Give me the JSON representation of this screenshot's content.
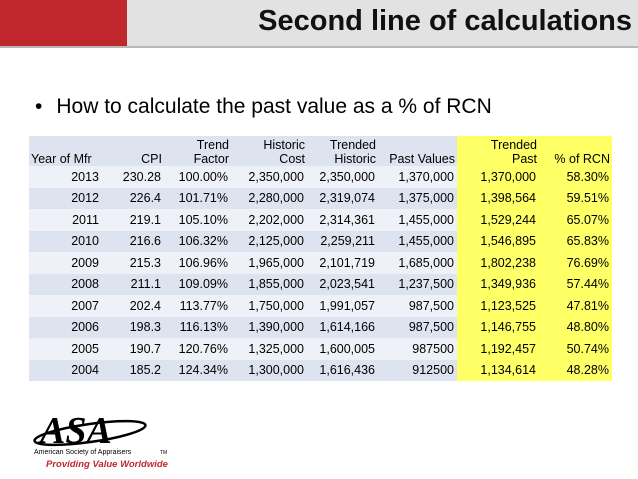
{
  "slide": {
    "title": "Second line of calculations",
    "bullet": "How to calculate the past value as a % of RCN"
  },
  "table": {
    "headers": [
      {
        "line1": "",
        "line2": "Year of Mfr"
      },
      {
        "line1": "",
        "line2": "CPI"
      },
      {
        "line1": "Trend",
        "line2": "Factor"
      },
      {
        "line1": "Historic",
        "line2": "Cost"
      },
      {
        "line1": "Trended",
        "line2": "Historic"
      },
      {
        "line1": "",
        "line2": "Past  Values"
      },
      {
        "line1": "Trended",
        "line2": "Past"
      },
      {
        "line1": "",
        "line2": "% of RCN"
      }
    ],
    "rows": [
      [
        "2013",
        "230.28",
        "100.00%",
        "2,350,000",
        "2,350,000",
        "1,370,000",
        "1,370,000",
        "58.30%"
      ],
      [
        "2012",
        "226.4",
        "101.71%",
        "2,280,000",
        "2,319,074",
        "1,375,000",
        "1,398,564",
        "59.51%"
      ],
      [
        "2011",
        "219.1",
        "105.10%",
        "2,202,000",
        "2,314,361",
        "1,455,000",
        "1,529,244",
        "65.07%"
      ],
      [
        "2010",
        "216.6",
        "106.32%",
        "2,125,000",
        "2,259,211",
        "1,455,000",
        "1,546,895",
        "65.83%"
      ],
      [
        "2009",
        "215.3",
        "106.96%",
        "1,965,000",
        "2,101,719",
        "1,685,000",
        "1,802,238",
        "76.69%"
      ],
      [
        "2008",
        "211.1",
        "109.09%",
        "1,855,000",
        "2,023,541",
        "1,237,500",
        "1,349,936",
        "57.44%"
      ],
      [
        "2007",
        "202.4",
        "113.77%",
        "1,750,000",
        "1,991,057",
        "987,500",
        "1,123,525",
        "47.81%"
      ],
      [
        "2006",
        "198.3",
        "116.13%",
        "1,390,000",
        "1,614,166",
        "987,500",
        "1,146,755",
        "48.80%"
      ],
      [
        "2005",
        "190.7",
        "120.76%",
        "1,325,000",
        "1,600,005",
        "987500",
        "1,192,457",
        "50.74%"
      ],
      [
        "2004",
        "185.2",
        "124.34%",
        "1,300,000",
        "1,616,436",
        "912500",
        "1,134,614",
        "48.28%"
      ]
    ]
  },
  "logo": {
    "letters": "ASA",
    "org": "American Society of Appraisers",
    "tagline": "Providing Value Worldwide",
    "mark": "TM"
  },
  "colors": {
    "accent_red": "#c0282d",
    "highlight_yellow": "#ffff66",
    "band_blue": "#dde4ef"
  }
}
